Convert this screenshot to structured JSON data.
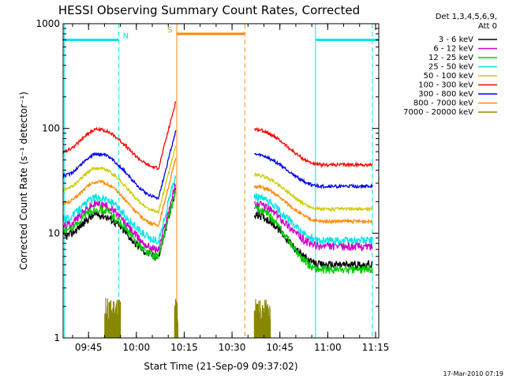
{
  "chart_data": {
    "type": "line",
    "title": "HESSI Observing Summary Count Rates, Corrected",
    "xlabel": "Start Time (21-Sep-09 09:37:02)",
    "ylabel": "Corrected Count Rate (s⁻¹ detector⁻¹)",
    "yscale": "log",
    "ylim": [
      1,
      1000
    ],
    "xlim": [
      "09:37:02",
      "11:16:00"
    ],
    "xticks": [
      "09:45",
      "10:00",
      "10:15",
      "10:30",
      "10:45",
      "11:00",
      "11:15"
    ],
    "yticks": [
      "1",
      "10",
      "100",
      "1000"
    ],
    "timestamp": "17-Mar-2010 07:19",
    "legend": {
      "header": [
        "Det 1,3,4,5,6,9,",
        "Att 0"
      ],
      "position": "right"
    },
    "series": [
      {
        "name": "3 - 6 keV",
        "color": "#000000",
        "pre_peak": 15,
        "pre_min": 6,
        "post_start": 15,
        "post_end": 5
      },
      {
        "name": "6 - 12 keV",
        "color": "#cc00cc",
        "pre_peak": 19,
        "pre_min": 7,
        "post_start": 19,
        "post_end": 7.5
      },
      {
        "name": "12 - 25 keV",
        "color": "#00cc00",
        "pre_peak": 17,
        "pre_min": 6,
        "post_start": 17,
        "post_end": 4.5
      },
      {
        "name": "25 - 50 keV",
        "color": "#00e5e5",
        "pre_peak": 22,
        "pre_min": 8.5,
        "post_start": 22,
        "post_end": 8.5
      },
      {
        "name": "50 - 100 keV",
        "color": "#cccc00",
        "pre_peak": 42,
        "pre_min": 16,
        "post_start": 36,
        "post_end": 17
      },
      {
        "name": "100 - 300 keV",
        "color": "#ff0000",
        "pre_peak": 98,
        "pre_min": 42,
        "post_start": 98,
        "post_end": 45
      },
      {
        "name": "300 - 800 keV",
        "color": "#0000ee",
        "pre_peak": 57,
        "pre_min": 22,
        "post_start": 56,
        "post_end": 28
      },
      {
        "name": "800 - 7000 keV",
        "color": "#ff8800",
        "pre_peak": 31,
        "pre_min": 12,
        "post_start": 28,
        "post_end": 13
      },
      {
        "name": "7000 - 20000 keV",
        "color": "#888800",
        "pre_peak": 1,
        "pre_min": 1,
        "post_start": 1,
        "post_end": 1
      }
    ],
    "flags": [
      {
        "label": "N",
        "color": "#00e5e5",
        "start": "09:37:02",
        "end": "09:54:30",
        "level": 700
      },
      {
        "label": "",
        "color": "#00e5e5",
        "start": "10:56:10",
        "end": "11:16:00",
        "level": 700
      },
      {
        "label": "S",
        "color": "#ff8800",
        "start": "10:12:40",
        "end": "10:34:00",
        "level": 800
      }
    ],
    "markers": [
      {
        "time": "09:37:30",
        "color": "#00e5e5",
        "style": "solid"
      },
      {
        "time": "09:54:30",
        "color": "#00e5e5",
        "style": "dashed"
      },
      {
        "time": "10:12:40",
        "color": "#ff8800",
        "style": "solid"
      },
      {
        "time": "10:34:00",
        "color": "#ff8800",
        "style": "dashed"
      },
      {
        "time": "10:56:10",
        "color": "#00e5e5",
        "style": "solid"
      },
      {
        "time": "11:14:00",
        "color": "#00e5e5",
        "style": "dashed"
      }
    ],
    "segments": {
      "pre": {
        "start": "09:37:02",
        "peak": "09:48:00",
        "minimum": "10:07:00",
        "end": "10:12:30"
      },
      "post": {
        "start": "10:37:00",
        "end": "11:14:00",
        "flatten": "10:58:00"
      }
    }
  }
}
